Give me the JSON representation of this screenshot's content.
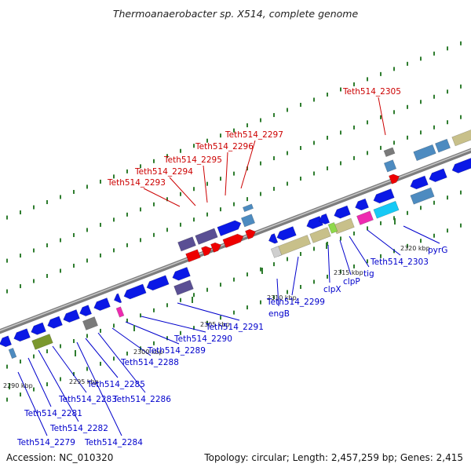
{
  "title": "Thermoanaerobacter sp. X514, complete genome",
  "footer": {
    "accession": "Accession: NC_010320",
    "summary": "Topology: circular; Length: 2,457,259 bp; Genes: 2,415"
  },
  "colors": {
    "forward_label": "#cc0000",
    "reverse_label": "#0000cc",
    "backbone": "#8a8a8a",
    "gene_blue": "#0a18e6",
    "gene_red": "#ee0000",
    "gene_khaki": "#c8c08a",
    "gene_purple": "#5a4f94",
    "gene_cyan": "#16c9f5",
    "gene_magenta": "#ee2ab0",
    "gene_olive": "#7b982e",
    "gene_gray": "#7a7a7a",
    "gene_steel": "#4d8bc0",
    "tick_green": "#2f7d2f"
  },
  "ticks": [
    {
      "label": "2290 kbp"
    },
    {
      "label": "2295 kbp"
    },
    {
      "label": "2300 kbp"
    },
    {
      "label": "2305 kbp"
    },
    {
      "label": "2310 kbp"
    },
    {
      "label": "2315 kbp"
    },
    {
      "label": "2320 kbp"
    }
  ],
  "forward_labels": [
    {
      "text": "Teth514_2293"
    },
    {
      "text": "Teth514_2294"
    },
    {
      "text": "Teth514_2295"
    },
    {
      "text": "Teth514_2296"
    },
    {
      "text": "Teth514_2297"
    },
    {
      "text": "Teth514_2305"
    }
  ],
  "reverse_labels": [
    {
      "text": "Teth514_2279"
    },
    {
      "text": "Teth514_2281"
    },
    {
      "text": "Teth514_2282"
    },
    {
      "text": "Teth514_2283"
    },
    {
      "text": "Teth514_2284"
    },
    {
      "text": "Teth514_2285"
    },
    {
      "text": "Teth514_2286"
    },
    {
      "text": "Teth514_2288"
    },
    {
      "text": "Teth514_2289"
    },
    {
      "text": "Teth514_2290"
    },
    {
      "text": "Teth514_2291"
    },
    {
      "text": "engB"
    },
    {
      "text": "Teth514_2299"
    },
    {
      "text": "clpX"
    },
    {
      "text": "clpP"
    },
    {
      "text": "tig"
    },
    {
      "text": "Teth514_2303"
    },
    {
      "text": "pyrG"
    }
  ]
}
